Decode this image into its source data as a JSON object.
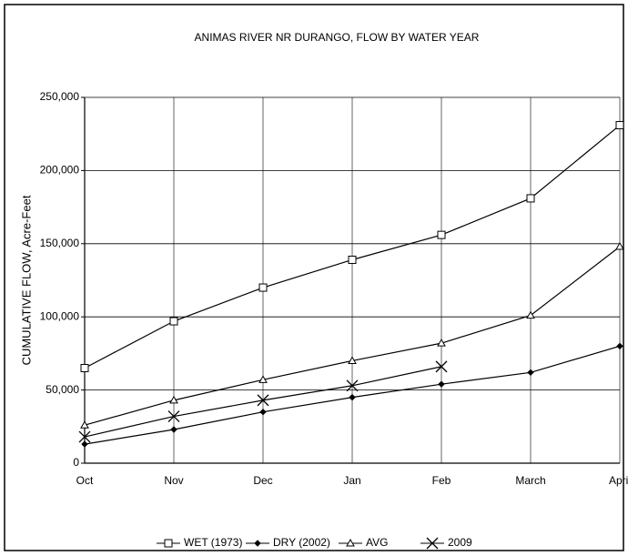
{
  "chart_data": {
    "type": "line",
    "title": "ANIMAS RIVER NR DURANGO, FLOW BY WATER YEAR",
    "y_label": "CUMULATIVE FLOW, Acre-Feet",
    "categories": [
      "Oct",
      "Nov",
      "Dec",
      "Jan",
      "Feb",
      "March",
      "April"
    ],
    "series": [
      {
        "name": "WET (1973)",
        "color": "#000000",
        "marker": "square",
        "values": [
          65000,
          97000,
          120000,
          139000,
          156000,
          181000,
          231000
        ]
      },
      {
        "name": "DRY (2002)",
        "color": "#000000",
        "marker": "diamond",
        "values": [
          13000,
          23000,
          35000,
          45000,
          54000,
          62000,
          80000
        ]
      },
      {
        "name": "AVG",
        "color": "#000000",
        "marker": "triangle",
        "values": [
          26000,
          43000,
          57000,
          70000,
          82000,
          101000,
          148000
        ]
      },
      {
        "name": "2009",
        "color": "#000000",
        "marker": "x",
        "values": [
          18000,
          32000,
          43000,
          53000,
          66000,
          null,
          null
        ]
      }
    ],
    "ylim": [
      0,
      250000
    ],
    "yticks": [
      0,
      {
        "value": 50000,
        "label": "50,000"
      },
      {
        "value": 100000,
        "label": "100,000"
      },
      {
        "value": 150000,
        "label": "150,000"
      },
      {
        "value": 200000,
        "label": "200,000"
      },
      {
        "value": 250000,
        "label": "250,000"
      }
    ],
    "grid": true,
    "legend": "bottom"
  }
}
